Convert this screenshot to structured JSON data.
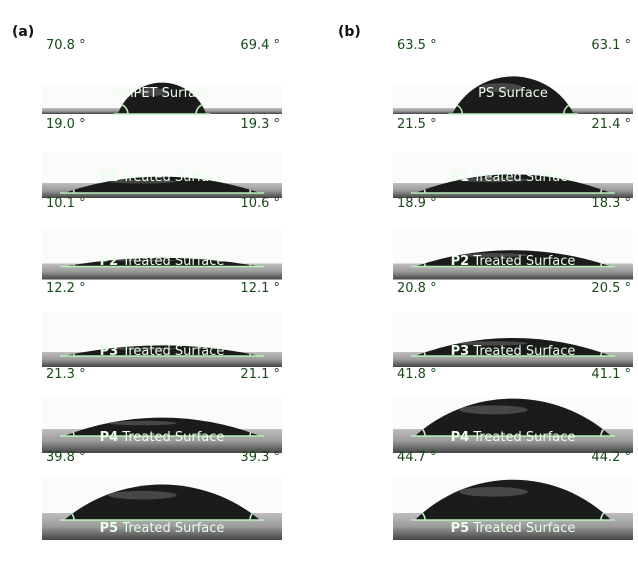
{
  "figure_labels": {
    "a": "(a)",
    "b": "(b)"
  },
  "columns": [
    {
      "panels": [
        {
          "left_angle": "70.8 °",
          "right_angle": "69.4 °",
          "prefix": "",
          "caption": "amPET Surface",
          "angle_deg": 70.8
        },
        {
          "left_angle": "19.0 °",
          "right_angle": "19.3 °",
          "prefix": "P1",
          "caption": " Treated Surface",
          "angle_deg": 19.0
        },
        {
          "left_angle": "10.1 °",
          "right_angle": "10.6 °",
          "prefix": "P2",
          "caption": " Treated Surface",
          "angle_deg": 10.1
        },
        {
          "left_angle": "12.2 °",
          "right_angle": "12.1 °",
          "prefix": "P3",
          "caption": " Treated Surface",
          "angle_deg": 12.2
        },
        {
          "left_angle": "21.3 °",
          "right_angle": "21.1 °",
          "prefix": "P4",
          "caption": " Treated Surface",
          "angle_deg": 21.3
        },
        {
          "left_angle": "39.8 °",
          "right_angle": "39.3 °",
          "prefix": "P5",
          "caption": " Treated Surface",
          "angle_deg": 39.8
        }
      ]
    },
    {
      "panels": [
        {
          "left_angle": "63.5 °",
          "right_angle": "63.1 °",
          "prefix": "",
          "caption": "PS Surface",
          "angle_deg": 63.5
        },
        {
          "left_angle": "21.5 °",
          "right_angle": "21.4 °",
          "prefix": "P1",
          "caption": " Treated Surface",
          "angle_deg": 21.5
        },
        {
          "left_angle": "18.9 °",
          "right_angle": "18.3 °",
          "prefix": "P2",
          "caption": " Treated Surface",
          "angle_deg": 18.9
        },
        {
          "left_angle": "20.8 °",
          "right_angle": "20.5 °",
          "prefix": "P3",
          "caption": " Treated Surface",
          "angle_deg": 20.8
        },
        {
          "left_angle": "41.8 °",
          "right_angle": "41.1 °",
          "prefix": "P4",
          "caption": " Treated Surface",
          "angle_deg": 41.8
        },
        {
          "left_angle": "44.7 °",
          "right_angle": "44.2 °",
          "prefix": "P5",
          "caption": " Treated Surface",
          "angle_deg": 44.7
        }
      ]
    }
  ]
}
